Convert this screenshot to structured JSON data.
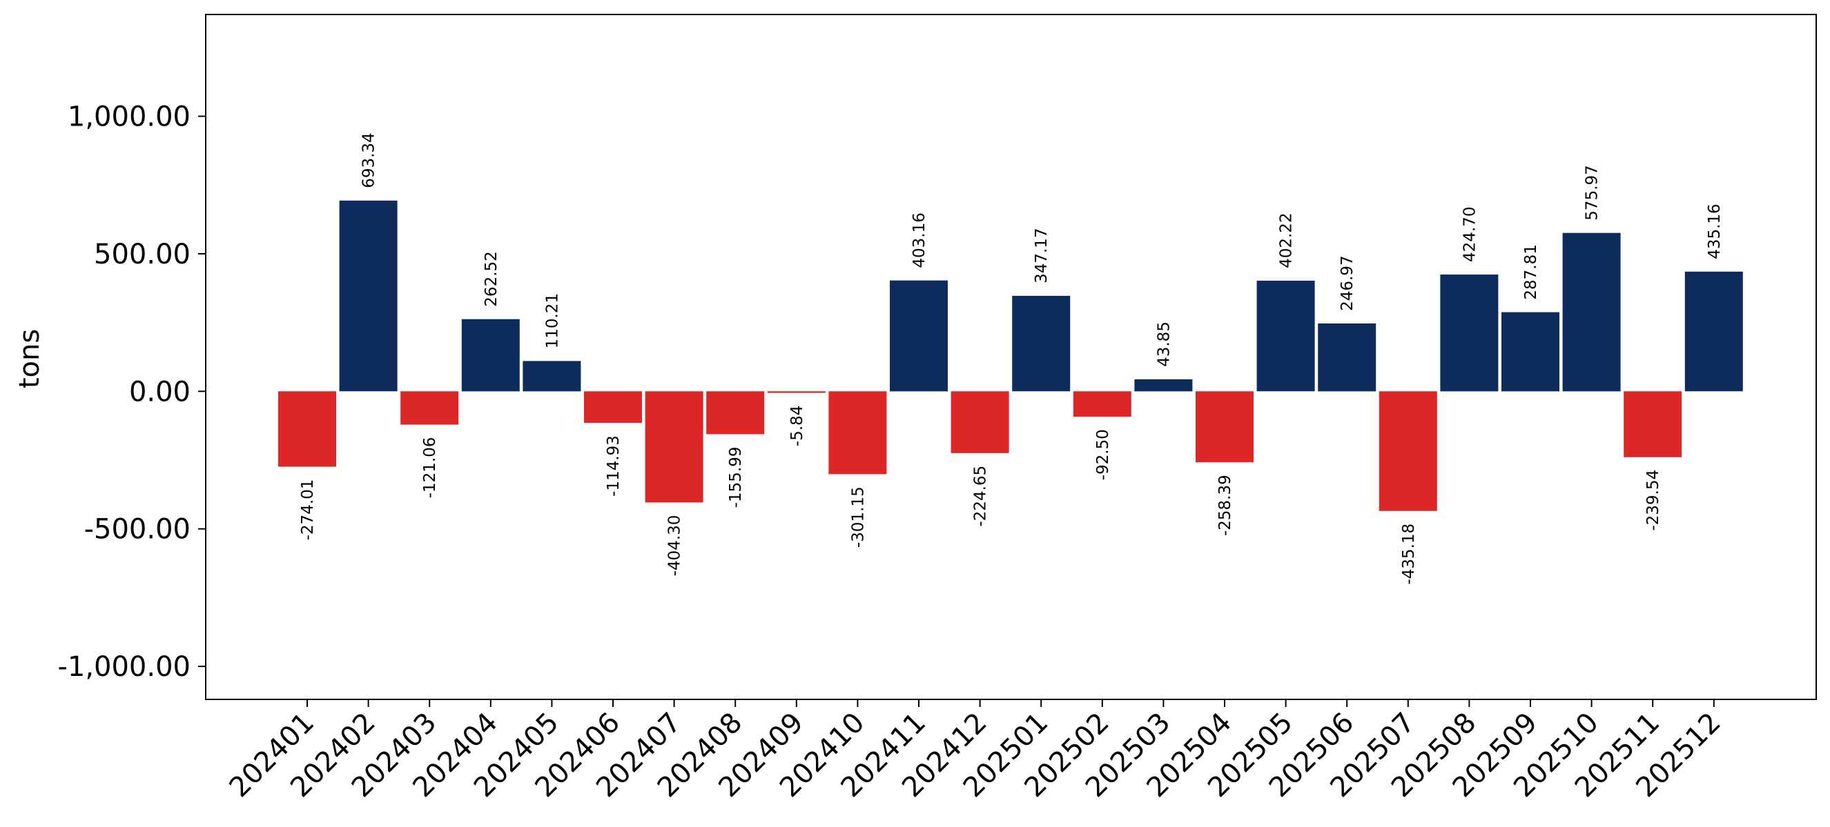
{
  "chart_data": {
    "type": "bar",
    "title": "",
    "xlabel": "",
    "ylabel": "tons",
    "ylim": [
      -1120,
      1370
    ],
    "yticks": [
      -1000,
      -500,
      0,
      500,
      1000
    ],
    "ytick_labels": [
      "-1,000.00",
      "-500.00",
      "0.00",
      "500.00",
      "1,000.00"
    ],
    "grid": false,
    "colors": {
      "positive": "#0d2c5c",
      "negative": "#dd2626"
    },
    "categories": [
      "202401",
      "202402",
      "202403",
      "202404",
      "202405",
      "202406",
      "202407",
      "202408",
      "202409",
      "202410",
      "202411",
      "202412",
      "202501",
      "202502",
      "202503",
      "202504",
      "202505",
      "202506",
      "202507",
      "202508",
      "202509",
      "202510",
      "202511",
      "202512"
    ],
    "values": [
      -274.01,
      693.34,
      -121.06,
      262.52,
      110.21,
      -114.93,
      -404.3,
      -155.99,
      -5.84,
      -301.15,
      403.16,
      -224.65,
      347.17,
      -92.5,
      43.85,
      -258.39,
      402.22,
      246.97,
      -435.18,
      424.7,
      287.81,
      575.97,
      -239.54,
      435.16
    ],
    "value_labels": [
      "-274.01",
      "693.34",
      "-121.06",
      "262.52",
      "110.21",
      "-114.93",
      "-404.30",
      "-155.99",
      "-5.84",
      "-301.15",
      "403.16",
      "-224.65",
      "347.17",
      "-92.50",
      "43.85",
      "-258.39",
      "402.22",
      "246.97",
      "-435.18",
      "424.70",
      "287.81",
      "575.97",
      "-239.54",
      "435.16"
    ]
  }
}
